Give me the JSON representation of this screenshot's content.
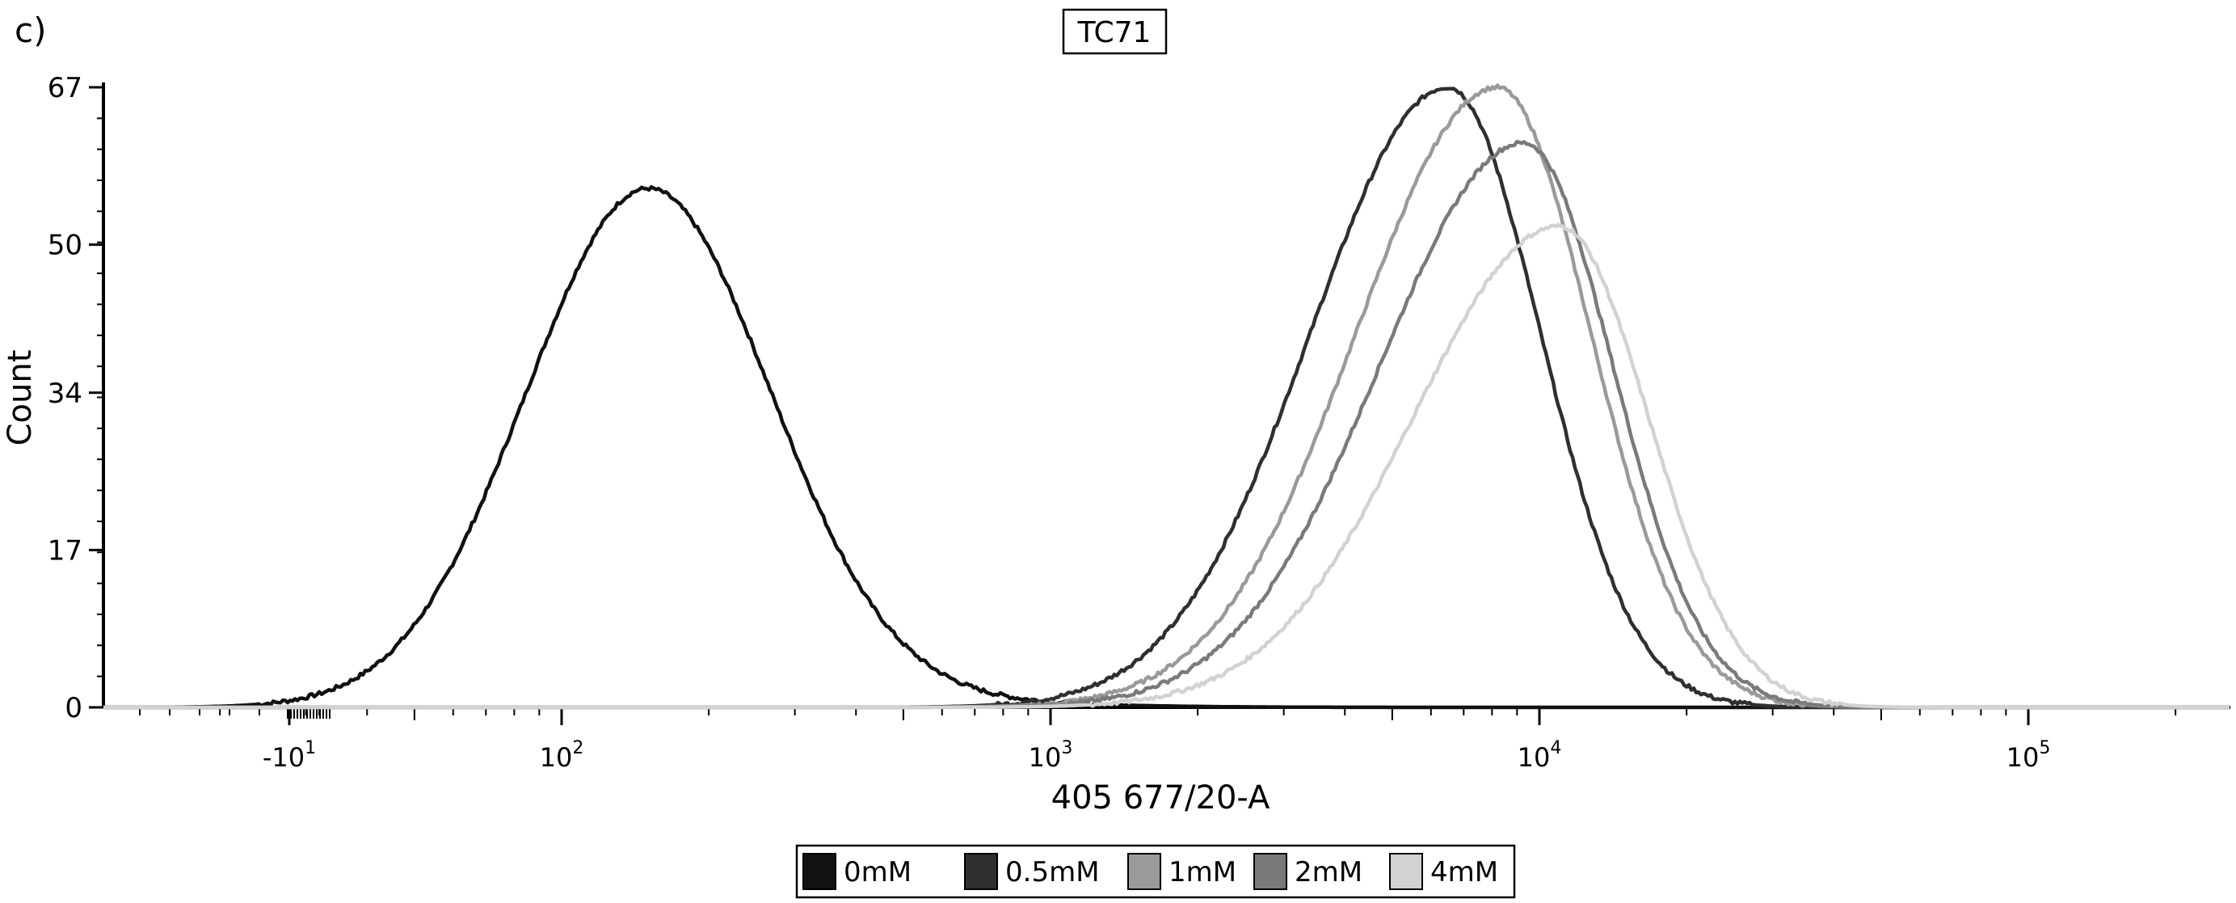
{
  "panel_label": "c)",
  "chart_data": {
    "type": "line",
    "title": "TC71",
    "xlabel": "405 677/20-A",
    "ylabel": "Count",
    "x_scale": "biexponential",
    "x_ticks": [
      {
        "value": -10,
        "base": "-10",
        "exp": "1"
      },
      {
        "value": 100,
        "base": "10",
        "exp": "2"
      },
      {
        "value": 1000,
        "base": "10",
        "exp": "3"
      },
      {
        "value": 10000,
        "base": "10",
        "exp": "4"
      },
      {
        "value": 100000,
        "base": "10",
        "exp": "5"
      }
    ],
    "y_ticks": [
      0,
      17,
      34,
      50,
      67
    ],
    "ylim": [
      0,
      67
    ],
    "grid": false,
    "legend_position": "bottom",
    "series": [
      {
        "name": "0mM",
        "color": "#111111",
        "peak": {
          "x": 150,
          "y": 56
        },
        "range": [
          -20,
          900
        ]
      },
      {
        "name": "0.5mM",
        "color": "#2f2f2f",
        "peak": {
          "x": 6500,
          "y": 67
        },
        "range": [
          1000,
          25000
        ]
      },
      {
        "name": "1mM",
        "color": "#9a9a9a",
        "peak": {
          "x": 8200,
          "y": 67
        },
        "range": [
          1200,
          32000
        ]
      },
      {
        "name": "2mM",
        "color": "#7a7a7a",
        "peak": {
          "x": 9300,
          "y": 61
        },
        "range": [
          1300,
          34000
        ]
      },
      {
        "name": "4mM",
        "color": "#d2d2d2",
        "peak": {
          "x": 11000,
          "y": 52
        },
        "range": [
          1500,
          40000
        ]
      }
    ]
  }
}
